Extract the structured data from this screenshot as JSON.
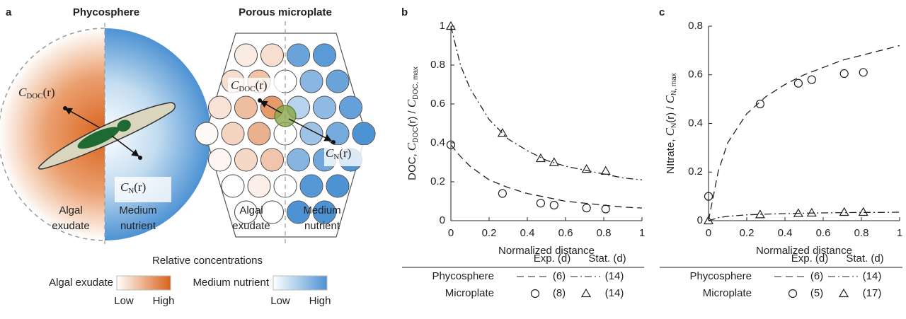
{
  "panel_a": {
    "label": "a",
    "titles": [
      "Phycosphere",
      "Porous microplate"
    ],
    "phycosphere": {
      "doc": {
        "c": "C",
        "sub": "DOC",
        "arg": "(r)"
      },
      "n": {
        "c": "C",
        "sub": "N",
        "arg": "(r)"
      },
      "left": [
        "Algal",
        "exudate"
      ],
      "right": [
        "Medium",
        "nutrient"
      ]
    },
    "microplate": {
      "doc": {
        "c": "C",
        "sub": "DOC",
        "arg": "(r)"
      },
      "n": {
        "c": "C",
        "sub": "N",
        "arg": "(r)"
      },
      "left": [
        "Algal",
        "exudate"
      ],
      "right": [
        "Medium",
        "nutrient"
      ]
    },
    "legend": {
      "title": "Relative concentrations",
      "scales": [
        {
          "name": "Algal exudate",
          "low": "Low",
          "high": "High"
        },
        {
          "name": "Medium nutrient",
          "low": "Low",
          "high": "High"
        }
      ]
    }
  },
  "chart_data": [
    {
      "type": "line",
      "label": "b",
      "xlabel": "Normalized distance",
      "ylabel": {
        "prefix": "DOC, ",
        "c": "C",
        "sub": "DOC",
        "arg": "(r)",
        "sep": " / ",
        "c2": "C",
        "sub2": "DOC, max"
      },
      "xlim": [
        0,
        1
      ],
      "ylim": [
        0,
        1
      ],
      "xticks": [
        0,
        0.2,
        0.4,
        0.6,
        0.8,
        1
      ],
      "yticks": [
        0,
        0.2,
        0.4,
        0.6,
        0.8,
        1
      ],
      "series": [
        {
          "style": "dashed",
          "color": "#222222",
          "x": [
            0,
            0.05,
            0.1,
            0.2,
            0.3,
            0.4,
            0.5,
            0.6,
            0.7,
            0.8,
            0.9,
            1
          ],
          "values": [
            0.39,
            0.33,
            0.28,
            0.21,
            0.17,
            0.14,
            0.12,
            0.1,
            0.09,
            0.08,
            0.07,
            0.065
          ]
        },
        {
          "style": "dashdot",
          "color": "#222222",
          "x": [
            0,
            0.05,
            0.1,
            0.2,
            0.3,
            0.4,
            0.5,
            0.6,
            0.7,
            0.8,
            0.9,
            1
          ],
          "values": [
            1,
            0.8,
            0.68,
            0.52,
            0.42,
            0.36,
            0.31,
            0.28,
            0.26,
            0.24,
            0.22,
            0.21
          ]
        },
        {
          "style": "circle",
          "color": "#222222",
          "x": [
            0,
            0.27,
            0.47,
            0.54,
            0.71,
            0.81
          ],
          "values": [
            0.39,
            0.14,
            0.09,
            0.08,
            0.065,
            0.06
          ]
        },
        {
          "style": "triangle",
          "color": "#222222",
          "x": [
            0,
            0.27,
            0.47,
            0.54,
            0.71,
            0.81
          ],
          "values": [
            1,
            0.45,
            0.32,
            0.3,
            0.265,
            0.255
          ]
        }
      ],
      "legend": {
        "headers": [
          "Exp. (d)",
          "Stat. (d)"
        ],
        "rows": [
          {
            "name": "Phycosphere",
            "exp": "(6)",
            "stat": "(14)"
          },
          {
            "name": "Microplate",
            "exp": "(8)",
            "stat": "(14)"
          }
        ]
      }
    },
    {
      "type": "line",
      "label": "c",
      "xlabel": "Normalized distance",
      "ylabel": {
        "prefix": "NItrate, ",
        "c": "C",
        "sub": "N",
        "arg": "(r)",
        "sep": " / ",
        "c2": "C",
        "sub2": "N, max"
      },
      "xlim": [
        0,
        1
      ],
      "ylim": [
        0,
        0.8
      ],
      "xticks": [
        0,
        0.2,
        0.4,
        0.6,
        0.8,
        1
      ],
      "yticks": [
        0,
        0.2,
        0.4,
        0.6,
        0.8
      ],
      "series": [
        {
          "style": "dashed",
          "color": "#222222",
          "x": [
            0,
            0.05,
            0.1,
            0.2,
            0.3,
            0.4,
            0.5,
            0.6,
            0.7,
            0.8,
            0.9,
            1
          ],
          "values": [
            0,
            0.2,
            0.32,
            0.44,
            0.51,
            0.56,
            0.6,
            0.63,
            0.66,
            0.68,
            0.7,
            0.72
          ]
        },
        {
          "style": "dashdot",
          "color": "#222222",
          "x": [
            0,
            0.05,
            0.1,
            0.2,
            0.3,
            0.4,
            0.5,
            0.6,
            0.7,
            0.8,
            0.9,
            1
          ],
          "values": [
            0,
            0.012,
            0.018,
            0.024,
            0.027,
            0.029,
            0.031,
            0.032,
            0.033,
            0.034,
            0.034,
            0.035
          ]
        },
        {
          "style": "circle",
          "color": "#222222",
          "x": [
            0,
            0.27,
            0.47,
            0.54,
            0.71,
            0.81
          ],
          "values": [
            0.1,
            0.48,
            0.565,
            0.58,
            0.605,
            0.61
          ]
        },
        {
          "style": "triangle",
          "color": "#222222",
          "x": [
            0,
            0.27,
            0.47,
            0.54,
            0.71,
            0.81
          ],
          "values": [
            0,
            0.025,
            0.03,
            0.032,
            0.035,
            0.035
          ]
        }
      ],
      "legend": {
        "headers": [
          "Exp. (d)",
          "Stat. (d)"
        ],
        "rows": [
          {
            "name": "Phycosphere",
            "exp": "(6)",
            "stat": "(14)"
          },
          {
            "name": "Microplate",
            "exp": "(5)",
            "stat": "(17)"
          }
        ]
      }
    }
  ]
}
